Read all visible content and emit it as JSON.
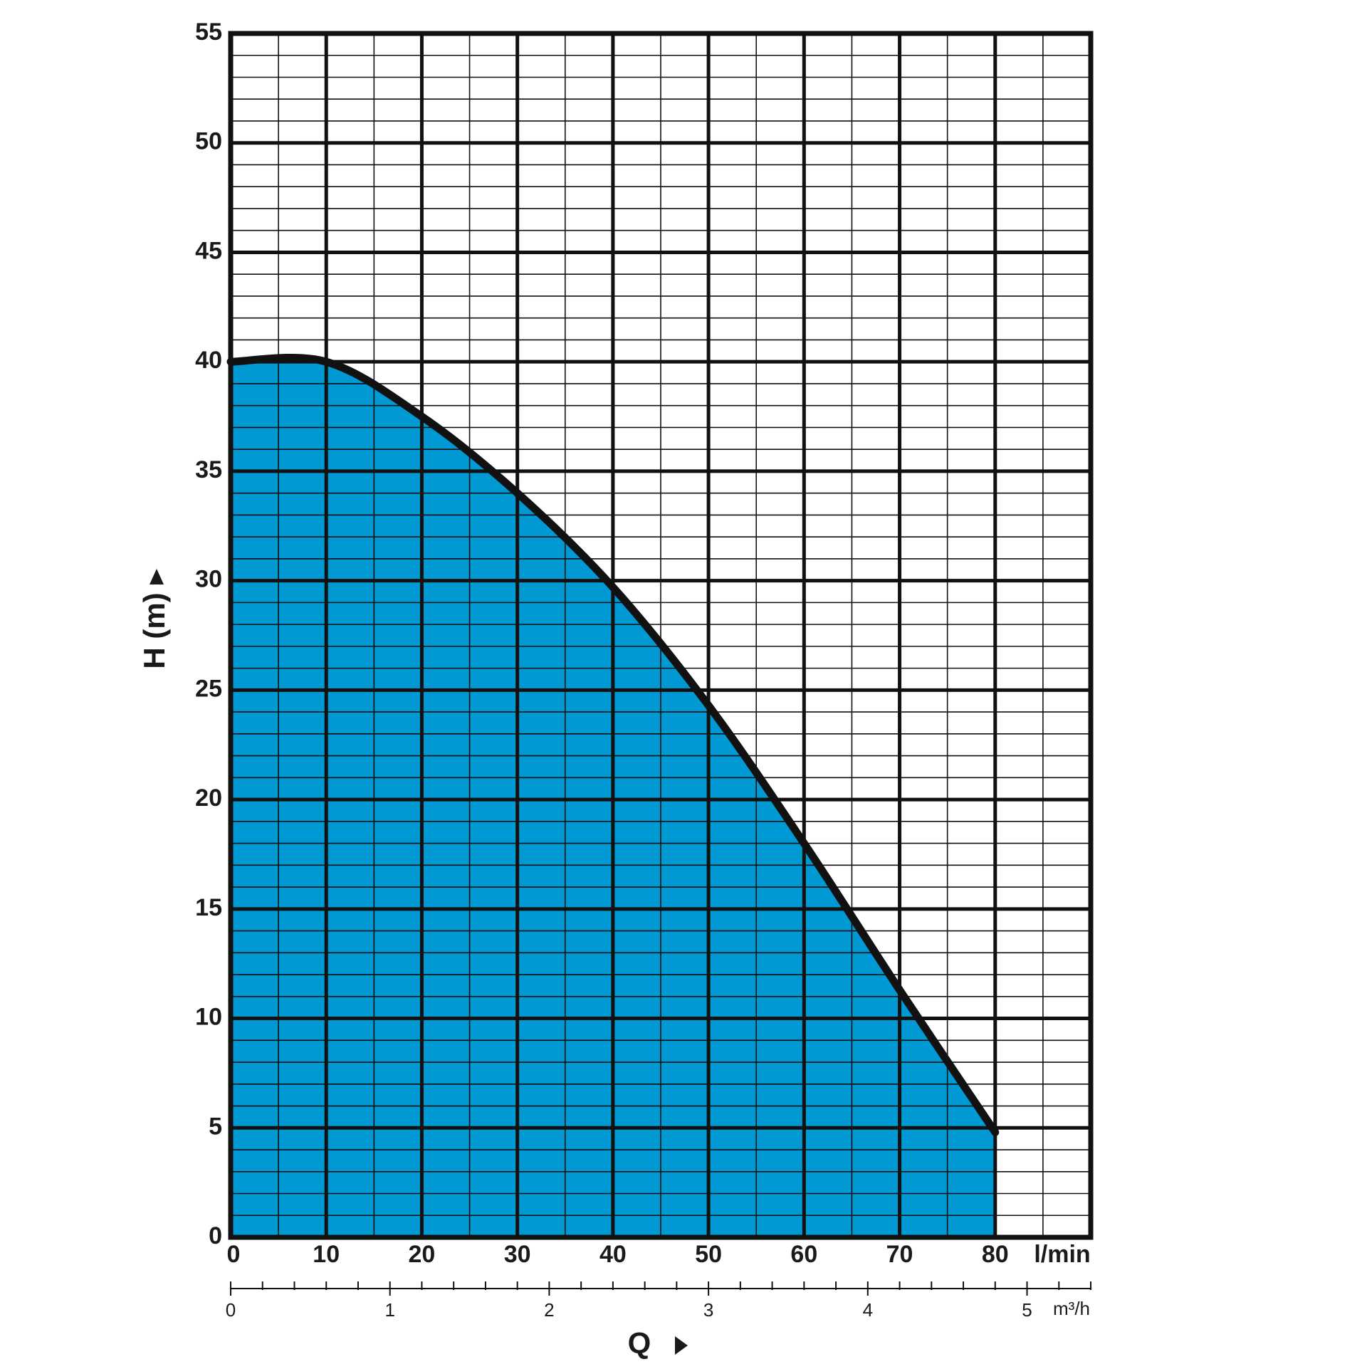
{
  "chart_data": {
    "type": "area",
    "ylabel": "H  (m)",
    "xlabel": "Q",
    "xunit": "l/min",
    "x2unit": "m³/h",
    "x": [
      0,
      10,
      20,
      30,
      40,
      50,
      60,
      70,
      80
    ],
    "series": [
      {
        "color": "#0099d4",
        "line_color": "#111111",
        "values": [
          40,
          40,
          37.5,
          34,
          29.7,
          24.3,
          18,
          11.3,
          4.8
        ]
      }
    ],
    "xlim": [
      0,
      90
    ],
    "xticks": [
      0,
      10,
      20,
      30,
      40,
      50,
      60,
      70,
      80
    ],
    "ylim": [
      0,
      55
    ],
    "yticks": [
      0,
      5,
      10,
      15,
      20,
      25,
      30,
      35,
      40,
      45,
      50,
      55
    ],
    "x2lim": [
      0,
      5.4
    ],
    "x2ticks": [
      0,
      1,
      2,
      3,
      4,
      5
    ],
    "x2minorticks": [
      0.2,
      0.4,
      0.6,
      0.8,
      1.2,
      1.4,
      1.6,
      1.8,
      2.2,
      2.4,
      2.6,
      2.8,
      3.2,
      3.4,
      3.6,
      3.8,
      4.2,
      4.4,
      4.6,
      4.8,
      5.2,
      5.4
    ],
    "grid": true,
    "minor_grid_step": {
      "x": 5,
      "y": 1
    }
  }
}
